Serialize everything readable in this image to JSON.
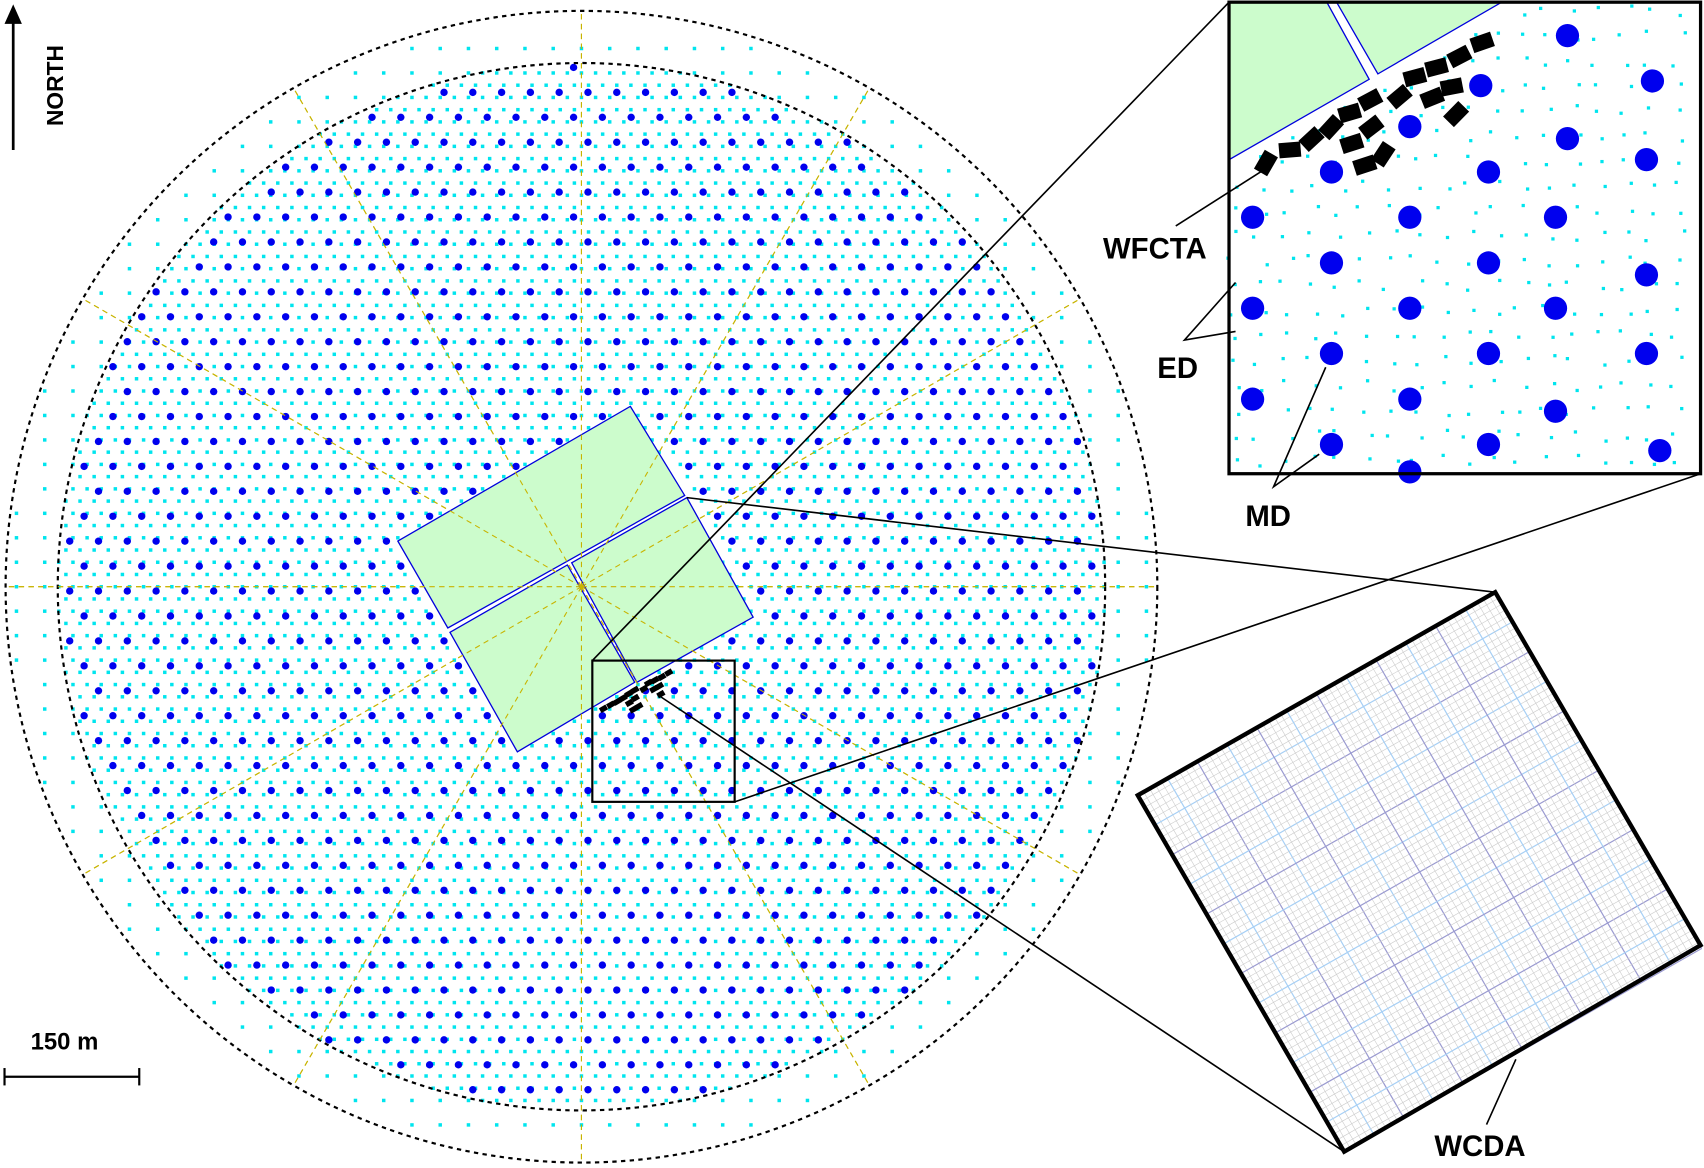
{
  "labels": {
    "north": "NORTH",
    "scale": "150 m",
    "wfcta": "WFCTA",
    "ed": "ED",
    "md": "MD",
    "wcda": "WCDA"
  },
  "colors": {
    "md": "#0000ee",
    "ed": "#00e5ee",
    "pond": "#ccfccc",
    "pond_edge": "#0000dd",
    "radial": "#c8b400",
    "wcda_minor": "#cccccc",
    "wcda_light": "#a6cff5",
    "wcda_dark": "#9a9ad0"
  },
  "icons": {
    "north_arrow": "arrow-up-icon"
  }
}
